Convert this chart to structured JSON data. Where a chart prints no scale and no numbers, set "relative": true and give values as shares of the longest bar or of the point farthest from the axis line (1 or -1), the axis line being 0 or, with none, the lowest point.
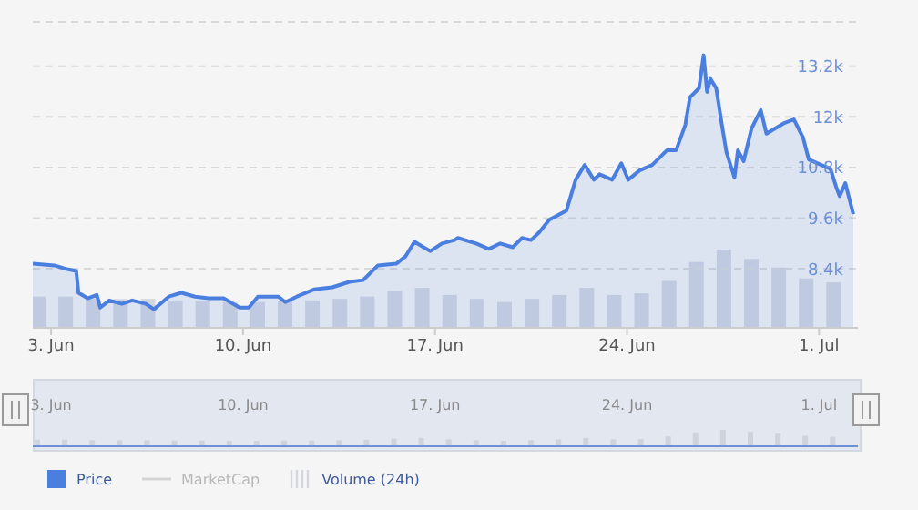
{
  "chart_data": [
    {
      "type": "area",
      "x": [
        "--06-02T08:00",
        "--06-03T03:00",
        "--06-03T14:00",
        "--06-03T22:00",
        "--06-04T00:00",
        "--06-04T08:00",
        "--06-04T16:00",
        "--06-04T19:00",
        "--06-05T03:00",
        "--06-05T14:00",
        "--06-05T23:00",
        "--06-06T11:00",
        "--06-06T18:00",
        "--06-07T07:00",
        "--06-07T18:00",
        "--06-08T06:00",
        "--06-08T18:00",
        "--06-09T07:00",
        "--06-09T21:00",
        "--06-10T05:00",
        "--06-10T13:00",
        "--06-11T07:00",
        "--06-11T13:00",
        "--06-11T23:00",
        "--06-12T14:00",
        "--06-13T06:00",
        "--06-13T21:00",
        "--06-14T09:00",
        "--06-14T22:00",
        "--06-15T14:00",
        "--06-15T22:00",
        "--06-16T06:00",
        "--06-16T14:00",
        "--06-16T20:00",
        "--06-17T06:00",
        "--06-17T17:00",
        "--06-17T20:00",
        "--06-18T12:00",
        "--06-18T23:00",
        "--06-19T09:00",
        "--06-19T20:00",
        "--06-20T04:00",
        "--06-20T12:00",
        "--06-20T19:00",
        "--06-21T04:00",
        "--06-21T19:00",
        "--06-22T03:00",
        "--06-22T11:00",
        "--06-22T19:00",
        "--06-23T00:00",
        "--06-23T11:00",
        "--06-23T19:00",
        "--06-24T01:00",
        "--06-24T11:00",
        "--06-24T22:00",
        "--06-25T11:00",
        "--06-25T19:00",
        "--06-26T03:00",
        "--06-26T07:00",
        "--06-26T15:00",
        "--06-26T19:00",
        "--06-26T22:00",
        "--06-27T01:00",
        "--06-27T06:00",
        "--06-27T11:00",
        "--06-27T15:00",
        "--06-27T22:00",
        "--06-28T01:00",
        "--06-28T06:00",
        "--06-28T13:00",
        "--06-28T21:00",
        "--06-29T02:00",
        "--06-29T10:00",
        "--06-29T18:00",
        "--06-30T02:00",
        "--06-30T10:00",
        "--06-30T15:00",
        "--07-01T02:00",
        "--07-01T10:00",
        "--07-01T15:00",
        "--07-01T18:00",
        "--07-01T23:00",
        "--07-02T06:00"
      ],
      "series": [
        {
          "name": "Price",
          "color": "#4a7fe0",
          "values": [
            8520,
            8480,
            8390,
            8350,
            7830,
            7700,
            7780,
            7480,
            7650,
            7570,
            7650,
            7570,
            7440,
            7740,
            7830,
            7740,
            7700,
            7700,
            7480,
            7480,
            7740,
            7740,
            7610,
            7740,
            7910,
            7960,
            8090,
            8130,
            8480,
            8520,
            8690,
            9040,
            8910,
            8820,
            9000,
            9080,
            9130,
            9000,
            8870,
            9000,
            8910,
            9130,
            9080,
            9260,
            9560,
            9780,
            10510,
            10860,
            10510,
            10640,
            10510,
            10900,
            10510,
            10730,
            10860,
            11210,
            11210,
            11810,
            12460,
            12680,
            13460,
            12590,
            12900,
            12680,
            11810,
            11160,
            10560,
            11210,
            10950,
            11730,
            12160,
            11600,
            11730,
            11860,
            11940,
            11510,
            10990,
            10860,
            10770,
            10340,
            10120,
            10430,
            9690
          ]
        },
        {
          "name": "MarketCap",
          "type": "line",
          "color": "#d4d4d4",
          "values": [
            null,
            null,
            null,
            null,
            null,
            null,
            null,
            null,
            null,
            null,
            null,
            null,
            null,
            null,
            null,
            null,
            null,
            null,
            null,
            null,
            null,
            null,
            null,
            null,
            null,
            null,
            null,
            null,
            null,
            null,
            null,
            null,
            null,
            null,
            null,
            null,
            null,
            null,
            null,
            null,
            null,
            null,
            null,
            null,
            null,
            null,
            null,
            null,
            null,
            null,
            null,
            null,
            null,
            null,
            null,
            null,
            null,
            null,
            null,
            null,
            null,
            null,
            null,
            null,
            null,
            null,
            null,
            null,
            null,
            null,
            null,
            null,
            null,
            null,
            null,
            null,
            null,
            null,
            null,
            null,
            null,
            null,
            null
          ]
        }
      ],
      "xlim": [
        "--06-02T08:00",
        "--07-02T10:00"
      ],
      "xticks": [
        {
          "value": "--06-03",
          "label": "3. Jun"
        },
        {
          "value": "--06-10",
          "label": "10. Jun"
        },
        {
          "value": "--06-17",
          "label": "17. Jun"
        },
        {
          "value": "--06-24",
          "label": "24. Jun"
        },
        {
          "value": "--07-01",
          "label": "1. Jul"
        }
      ],
      "ylim": [
        7000,
        14250
      ],
      "yticks": [
        {
          "value": 8400,
          "label": "8.4k"
        },
        {
          "value": 9600,
          "label": "9.6k"
        },
        {
          "value": 10800,
          "label": "10.8k"
        },
        {
          "value": 12000,
          "label": "12k"
        },
        {
          "value": 13200,
          "label": "13.2k"
        }
      ],
      "grid": "y",
      "legend": "bottom"
    },
    {
      "type": "bar",
      "relative": true,
      "x": [
        "--06-02T12:00",
        "--06-03T12:00",
        "--06-04T12:00",
        "--06-05T12:00",
        "--06-06T12:00",
        "--06-07T12:00",
        "--06-08T12:00",
        "--06-09T12:00",
        "--06-10T12:00",
        "--06-11T12:00",
        "--06-12T12:00",
        "--06-13T12:00",
        "--06-14T12:00",
        "--06-15T12:00",
        "--06-16T12:00",
        "--06-17T12:00",
        "--06-18T12:00",
        "--06-19T12:00",
        "--06-20T12:00",
        "--06-21T12:00",
        "--06-22T12:00",
        "--06-23T12:00",
        "--06-24T12:00",
        "--06-25T12:00",
        "--06-26T12:00",
        "--06-27T12:00",
        "--06-28T12:00",
        "--06-29T12:00",
        "--06-30T12:00",
        "--07-01T12:00"
      ],
      "series": [
        {
          "name": "Volume (24h)",
          "color": "#d3d6df",
          "values": [
            0.4,
            0.4,
            0.37,
            0.37,
            0.37,
            0.35,
            0.35,
            0.33,
            0.33,
            0.35,
            0.35,
            0.37,
            0.4,
            0.47,
            0.51,
            0.42,
            0.37,
            0.33,
            0.37,
            0.42,
            0.51,
            0.42,
            0.44,
            0.6,
            0.84,
            1,
            0.88,
            0.77,
            0.63,
            0.58
          ]
        }
      ],
      "xlim": [
        "--06-02T08:00",
        "--07-02T10:00"
      ],
      "tick_labels": false
    },
    {
      "type": "bar",
      "relative": true,
      "color": "#cfd3dd",
      "x": [
        "--06-02T12:00",
        "--06-03T12:00",
        "--06-04T12:00",
        "--06-05T12:00",
        "--06-06T12:00",
        "--06-07T12:00",
        "--06-08T12:00",
        "--06-09T12:00",
        "--06-10T12:00",
        "--06-11T12:00",
        "--06-12T12:00",
        "--06-13T12:00",
        "--06-14T12:00",
        "--06-15T12:00",
        "--06-16T12:00",
        "--06-17T12:00",
        "--06-18T12:00",
        "--06-19T12:00",
        "--06-20T12:00",
        "--06-21T12:00",
        "--06-22T12:00",
        "--06-23T12:00",
        "--06-24T12:00",
        "--06-25T12:00",
        "--06-26T12:00",
        "--06-27T12:00",
        "--06-28T12:00",
        "--06-29T12:00",
        "--06-30T12:00",
        "--07-01T12:00"
      ],
      "values": [
        0.4,
        0.4,
        0.37,
        0.37,
        0.37,
        0.35,
        0.35,
        0.33,
        0.33,
        0.35,
        0.35,
        0.37,
        0.4,
        0.47,
        0.51,
        0.42,
        0.37,
        0.33,
        0.37,
        0.42,
        0.51,
        0.42,
        0.44,
        0.6,
        0.84,
        1,
        0.88,
        0.77,
        0.63,
        0.58
      ],
      "xlim": [
        "--06-02T08:00",
        "--07-02T10:00"
      ],
      "xticks": [
        {
          "value": "--06-03",
          "label": "3. Jun"
        },
        {
          "value": "--06-10",
          "label": "10. Jun"
        },
        {
          "value": "--06-17",
          "label": "17. Jun"
        },
        {
          "value": "--06-24",
          "label": "24. Jun"
        },
        {
          "value": "--07-01",
          "label": "1. Jul"
        }
      ],
      "tick_labels": "x"
    }
  ]
}
